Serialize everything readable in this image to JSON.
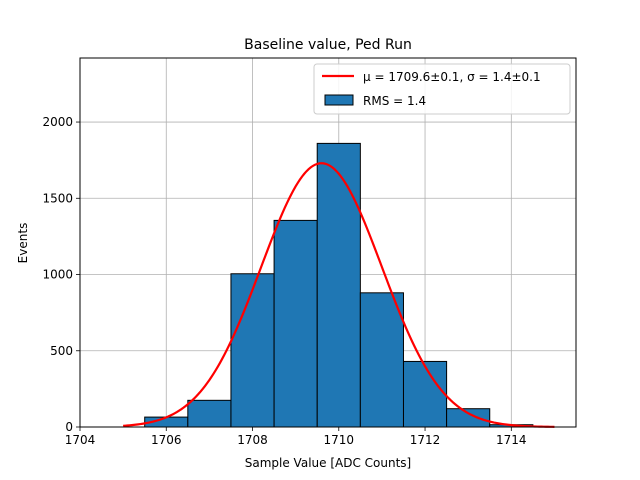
{
  "chart_data": {
    "type": "bar",
    "title": "Baseline value, Ped Run",
    "xlabel": "Sample Value [ADC Counts]",
    "ylabel": "Events",
    "xlim": [
      1704,
      1715.5
    ],
    "ylim": [
      0,
      2420
    ],
    "xticks": [
      1704,
      1706,
      1708,
      1710,
      1712,
      1714
    ],
    "yticks": [
      0,
      500,
      1000,
      1500,
      2000
    ],
    "grid": true,
    "legend_position": "top-right",
    "histogram": {
      "name": "RMS = 1.4",
      "color": "#1f77b4",
      "edge_color": "#000000",
      "bins": [
        {
          "left": 1704.5,
          "right": 1705.5,
          "count": 0
        },
        {
          "left": 1705.5,
          "right": 1706.5,
          "count": 65
        },
        {
          "left": 1706.5,
          "right": 1707.5,
          "count": 175
        },
        {
          "left": 1707.5,
          "right": 1708.5,
          "count": 1005
        },
        {
          "left": 1708.5,
          "right": 1709.5,
          "count": 1355
        },
        {
          "left": 1709.5,
          "right": 1710.5,
          "count": 1860
        },
        {
          "left": 1710.5,
          "right": 1711.5,
          "count": 880
        },
        {
          "left": 1711.5,
          "right": 1712.5,
          "count": 430
        },
        {
          "left": 1712.5,
          "right": 1713.5,
          "count": 120
        },
        {
          "left": 1713.5,
          "right": 1714.5,
          "count": 15
        }
      ]
    },
    "fit": {
      "name": "μ = 1709.6±0.1, σ = 1.4±0.1",
      "color": "#ff0000",
      "mu": 1709.6,
      "sigma": 1.4,
      "amplitude": 1730,
      "x_range": [
        1705,
        1715
      ]
    }
  }
}
